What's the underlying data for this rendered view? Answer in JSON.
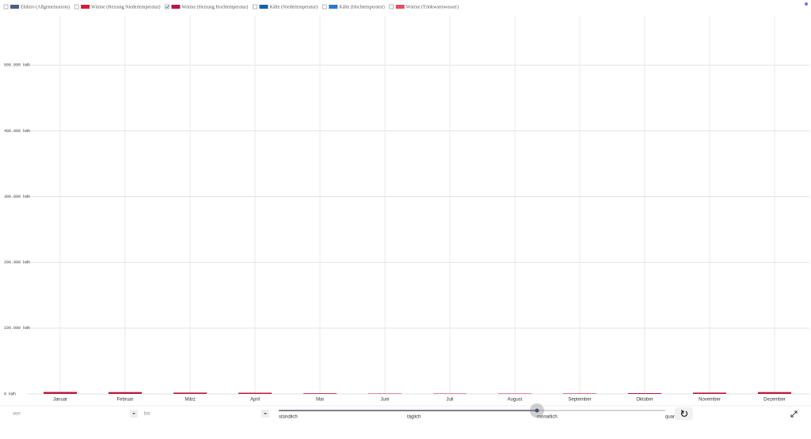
{
  "chart_data": {
    "type": "bar",
    "legend": [
      {
        "name": "Elektro (Allgemeinstrom)",
        "color": "#4a5f86",
        "checked": false
      },
      {
        "name": "Wärme (Heizung Niedertemperatur)",
        "color": "#d0213a",
        "checked": false
      },
      {
        "name": "Wärme (Heizung Hochtemperatur)",
        "color": "#b81c3c",
        "checked": true
      },
      {
        "name": "Kälte (Niedertemperatur)",
        "color": "#1a5fa8",
        "checked": false
      },
      {
        "name": "Kälte (Hochtemperatur)",
        "color": "#2a7ac4",
        "checked": false
      },
      {
        "name": "Wärme (Trinkwarmwasser)",
        "color": "#e05060",
        "checked": false
      }
    ],
    "categories": [
      "Januar",
      "Februar",
      "März",
      "April",
      "Mai",
      "Juni",
      "Juli",
      "August",
      "September",
      "Oktober",
      "November",
      "Dezember"
    ],
    "values": [
      3000,
      2800,
      2000,
      1800,
      1000,
      600,
      600,
      600,
      700,
      1200,
      2000,
      2800
    ],
    "ylim": [
      0,
      575000
    ],
    "yticks": [
      {
        "value": 0,
        "label": "0 kWh"
      },
      {
        "value": 100000,
        "label": "100.000 kWh"
      },
      {
        "value": 200000,
        "label": "200.000 kWh"
      },
      {
        "value": 300000,
        "label": "300.000 kWh"
      },
      {
        "value": 400000,
        "label": "400.000 kWh"
      },
      {
        "value": 500000,
        "label": "500.000 kWh"
      }
    ],
    "grid": true
  },
  "controls": {
    "from": "von",
    "to": "bis",
    "resolution": [
      "stündlich",
      "täglich",
      "monatlich",
      "quar"
    ],
    "selected": 2
  }
}
